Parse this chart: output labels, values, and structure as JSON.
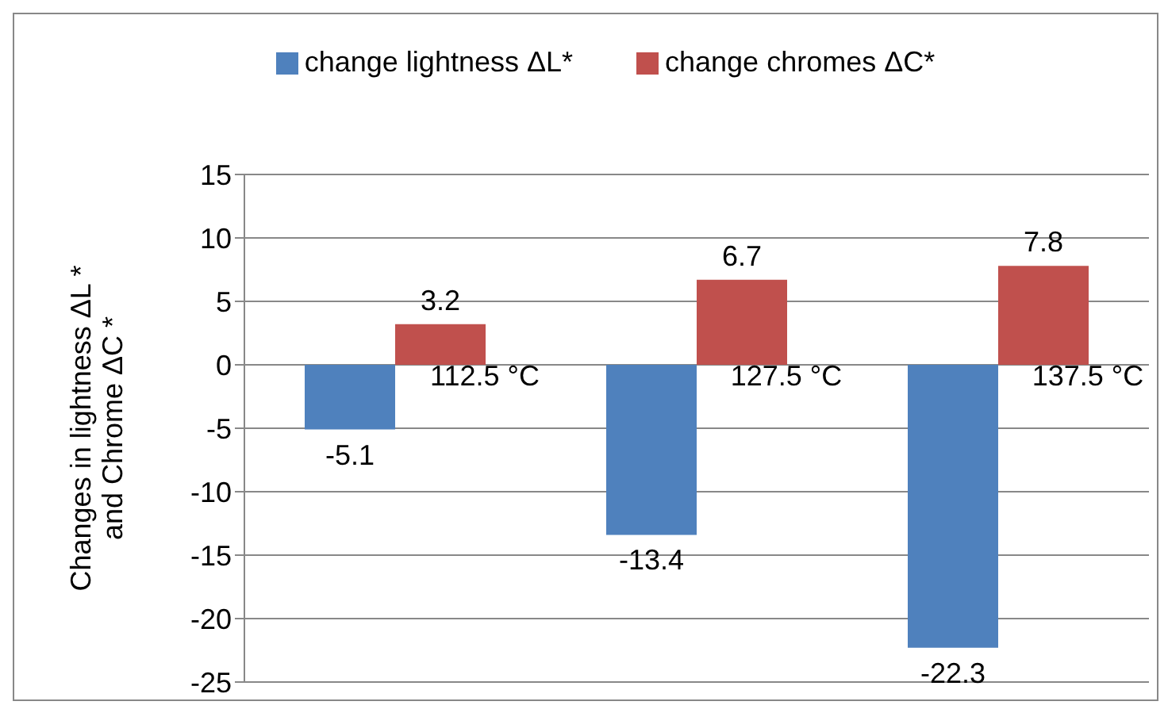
{
  "chart_data": {
    "type": "bar",
    "ylabel": "Changes in lightness ΔL *\nand Chrome ΔC *",
    "categories": [
      "112.5 °C",
      "127.5 °C",
      "137.5 °C"
    ],
    "series": [
      {
        "name": "change lightness ΔL*",
        "color": "#4f81bd",
        "values": [
          -5.1,
          -13.4,
          -22.3
        ]
      },
      {
        "name": "change chromes ΔC*",
        "color": "#c0504d",
        "values": [
          3.2,
          6.7,
          7.8
        ]
      }
    ],
    "ylim": [
      -25,
      15
    ],
    "yticks": [
      -25,
      -20,
      -15,
      -10,
      -5,
      0,
      5,
      10,
      15
    ],
    "grid": "y",
    "legend": "top",
    "data_labels": true
  }
}
